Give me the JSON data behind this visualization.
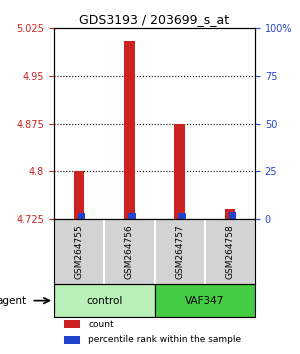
{
  "title": "GDS3193 / 203699_s_at",
  "samples": [
    "GSM264755",
    "GSM264756",
    "GSM264757",
    "GSM264758"
  ],
  "groups": [
    "control",
    "control",
    "VAF347",
    "VAF347"
  ],
  "group_labels": [
    "control",
    "VAF347"
  ],
  "group_colors": [
    "#90ee90",
    "#00cc00"
  ],
  "count_values": [
    4.8,
    5.005,
    4.875,
    4.74
  ],
  "percentile_values": [
    3.0,
    3.0,
    3.0,
    3.5
  ],
  "base_value": 4.725,
  "ylim_left": [
    4.725,
    5.025
  ],
  "ylim_right": [
    0,
    100
  ],
  "yticks_left": [
    4.725,
    4.8,
    4.875,
    4.95,
    5.025
  ],
  "yticks_right": [
    0,
    25,
    50,
    75,
    100
  ],
  "ytick_labels_right": [
    "0",
    "25",
    "50",
    "75",
    "100%"
  ],
  "hlines": [
    4.95,
    4.875,
    4.8
  ],
  "bar_width": 0.6,
  "count_color": "#cc2222",
  "percentile_color": "#2244cc",
  "left_tick_color": "#cc2222",
  "right_tick_color": "#2244cc",
  "agent_label": "agent",
  "legend_count": "count",
  "legend_percentile": "percentile rank within the sample"
}
